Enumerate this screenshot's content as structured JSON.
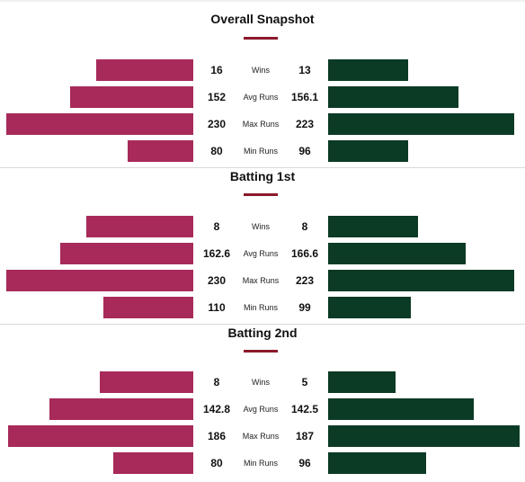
{
  "colors": {
    "team1": "#a72a5a",
    "team2": "#0b3a25",
    "accent": "#8b1a2b"
  },
  "sections": [
    {
      "title": "Overall Snapshot",
      "rows": [
        {
          "label": "Wins",
          "left": "16",
          "right": "13",
          "left_fill": 0.52,
          "right_fill": 0.42
        },
        {
          "label": "Avg Runs",
          "left": "152",
          "right": "156.1",
          "left_fill": 0.66,
          "right_fill": 0.68
        },
        {
          "label": "Max Runs",
          "left": "230",
          "right": "223",
          "left_fill": 1.0,
          "right_fill": 0.97
        },
        {
          "label": "Min Runs",
          "left": "80",
          "right": "96",
          "left_fill": 0.35,
          "right_fill": 0.42
        }
      ]
    },
    {
      "title": "Batting 1st",
      "rows": [
        {
          "label": "Wins",
          "left": "8",
          "right": "8",
          "left_fill": 0.57,
          "right_fill": 0.47
        },
        {
          "label": "Avg Runs",
          "left": "162.6",
          "right": "166.6",
          "left_fill": 0.71,
          "right_fill": 0.72
        },
        {
          "label": "Max Runs",
          "left": "230",
          "right": "223",
          "left_fill": 1.0,
          "right_fill": 0.97
        },
        {
          "label": "Min Runs",
          "left": "110",
          "right": "99",
          "left_fill": 0.48,
          "right_fill": 0.43
        }
      ]
    },
    {
      "title": "Batting 2nd",
      "rows": [
        {
          "label": "Wins",
          "left": "8",
          "right": "5",
          "left_fill": 0.5,
          "right_fill": 0.35
        },
        {
          "label": "Avg Runs",
          "left": "142.8",
          "right": "142.5",
          "left_fill": 0.77,
          "right_fill": 0.76
        },
        {
          "label": "Max Runs",
          "left": "186",
          "right": "187",
          "left_fill": 0.99,
          "right_fill": 1.0
        },
        {
          "label": "Min Runs",
          "left": "80",
          "right": "96",
          "left_fill": 0.43,
          "right_fill": 0.51
        }
      ]
    }
  ]
}
